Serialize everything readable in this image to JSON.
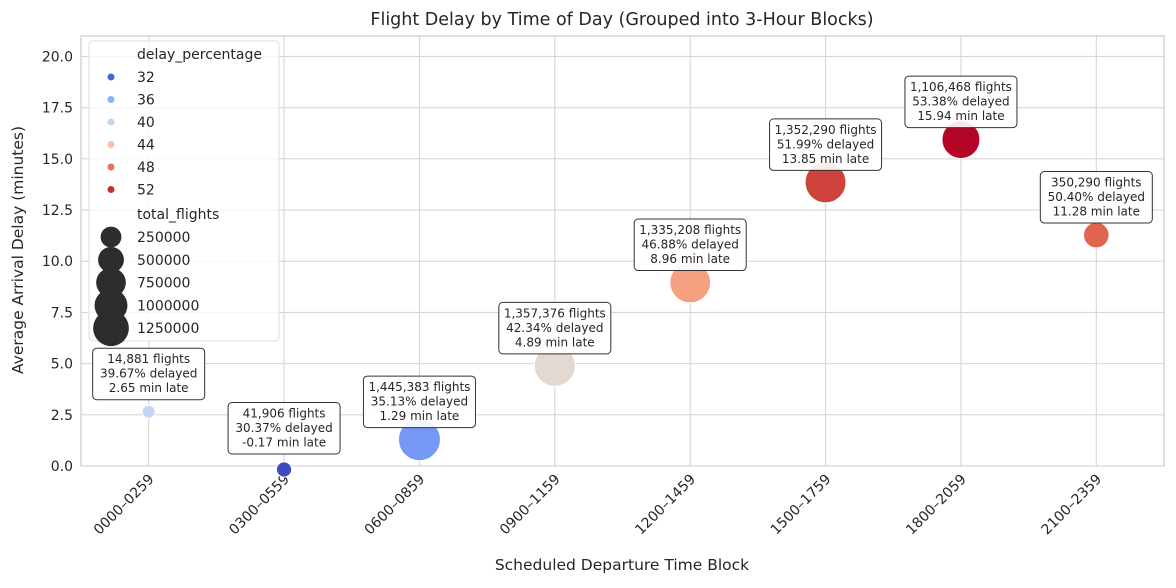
{
  "chart_data": {
    "type": "scatter",
    "title": "Flight Delay by Time of Day (Grouped into 3-Hour Blocks)",
    "xlabel": "Scheduled Departure Time Block",
    "ylabel": "Average Arrival Delay (minutes)",
    "categories": [
      "0000–0259",
      "0300–0559",
      "0600–0859",
      "0900–1159",
      "1200–1459",
      "1500–1759",
      "1800–2059",
      "2100–2359"
    ],
    "ylim": [
      0,
      21
    ],
    "yticks": [
      "0.0",
      "2.5",
      "5.0",
      "7.5",
      "10.0",
      "12.5",
      "15.0",
      "17.5",
      "20.0"
    ],
    "grid": true,
    "points": [
      {
        "category": "0000–0259",
        "avg_delay": 2.65,
        "delay_percentage": 39.67,
        "total_flights": 14881,
        "color": "#c5d6f2",
        "annotation": [
          "14,881 flights",
          "39.67% delayed",
          "2.65 min late"
        ]
      },
      {
        "category": "0300–0559",
        "avg_delay": -0.17,
        "delay_percentage": 30.37,
        "total_flights": 41906,
        "color": "#3b4cc0",
        "annotation": [
          "41,906 flights",
          "30.37% delayed",
          "-0.17 min late"
        ]
      },
      {
        "category": "0600–0859",
        "avg_delay": 1.29,
        "delay_percentage": 35.13,
        "total_flights": 1445383,
        "color": "#7597f6",
        "annotation": [
          "1,445,383 flights",
          "35.13% delayed",
          "1.29 min late"
        ]
      },
      {
        "category": "0900–1159",
        "avg_delay": 4.89,
        "delay_percentage": 42.34,
        "total_flights": 1357376,
        "color": "#e3d9d3",
        "annotation": [
          "1,357,376 flights",
          "42.34% delayed",
          "4.89 min late"
        ]
      },
      {
        "category": "1200–1459",
        "avg_delay": 8.96,
        "delay_percentage": 46.88,
        "total_flights": 1335208,
        "color": "#f5a081",
        "annotation": [
          "1,335,208 flights",
          "46.88% delayed",
          "8.96 min late"
        ]
      },
      {
        "category": "1500–1759",
        "avg_delay": 13.85,
        "delay_percentage": 51.99,
        "total_flights": 1352290,
        "color": "#cd423b",
        "annotation": [
          "1,352,290 flights",
          "51.99% delayed",
          "13.85 min late"
        ]
      },
      {
        "category": "1800–2059",
        "avg_delay": 15.94,
        "delay_percentage": 53.38,
        "total_flights": 1106468,
        "color": "#b40426",
        "annotation": [
          "1,106,468 flights",
          "53.38% delayed",
          "15.94 min late"
        ]
      },
      {
        "category": "2100–2359",
        "avg_delay": 11.28,
        "delay_percentage": 50.4,
        "total_flights": 350290,
        "color": "#e0654f",
        "annotation": [
          "350,290 flights",
          "50.40% delayed",
          "11.28 min late"
        ]
      }
    ],
    "legend": {
      "placement": "upper-left",
      "hue_title": "delay_percentage",
      "hue_entries": [
        {
          "label": "32",
          "color": "#4a63d3"
        },
        {
          "label": "36",
          "color": "#8db0fe"
        },
        {
          "label": "40",
          "color": "#c5d6f2"
        },
        {
          "label": "44",
          "color": "#f6bfa6"
        },
        {
          "label": "48",
          "color": "#e7745b"
        },
        {
          "label": "52",
          "color": "#c43032"
        }
      ],
      "size_title": "total_flights",
      "size_entries": [
        {
          "label": "250000",
          "value": 250000
        },
        {
          "label": "500000",
          "value": 500000
        },
        {
          "label": "750000",
          "value": 750000
        },
        {
          "label": "1000000",
          "value": 1000000
        },
        {
          "label": "1250000",
          "value": 1250000
        }
      ],
      "size_color": "#2d2d2d"
    }
  }
}
